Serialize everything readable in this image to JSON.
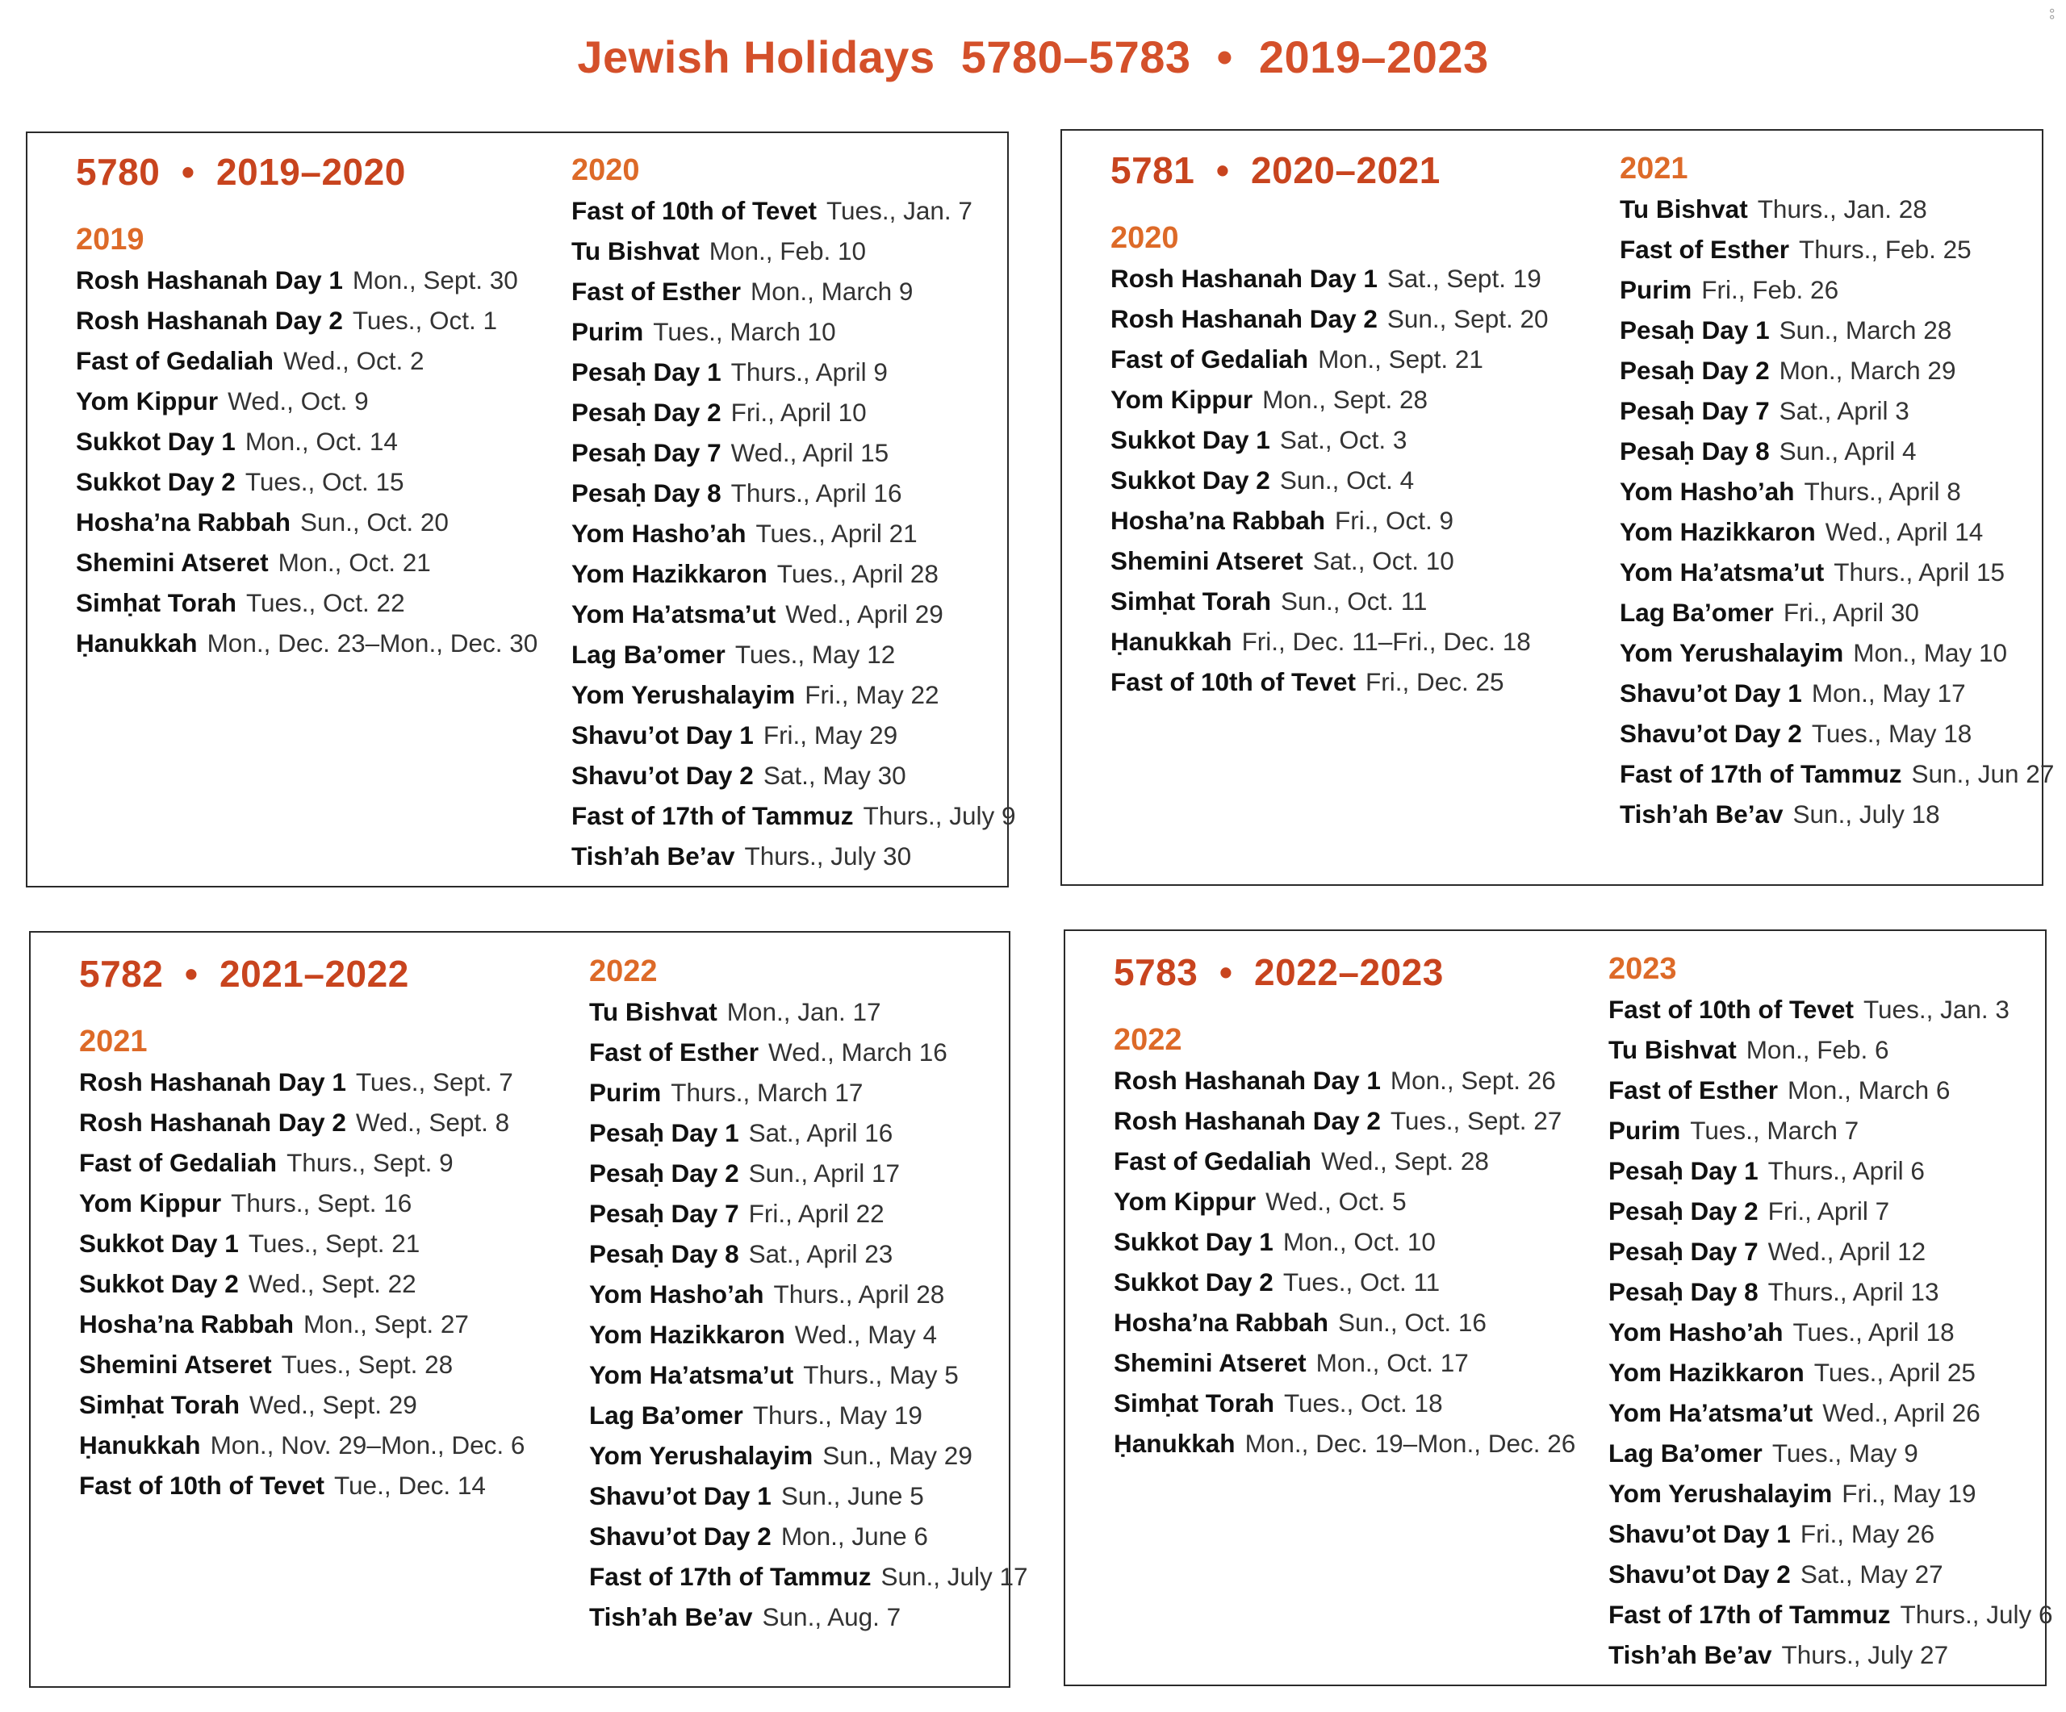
{
  "title": "Jewish Holidays  5780–5783  •  2019–2023",
  "blocks": [
    {
      "title": "5780  •  2019–2020",
      "left": {
        "year": "2019",
        "items": [
          {
            "name": "Rosh Hashanah Day 1",
            "date": "Mon., Sept. 30"
          },
          {
            "name": "Rosh Hashanah Day 2",
            "date": "Tues., Oct. 1"
          },
          {
            "name": "Fast of Gedaliah",
            "date": "Wed., Oct. 2"
          },
          {
            "name": "Yom Kippur",
            "date": "Wed., Oct. 9"
          },
          {
            "name": "Sukkot Day 1",
            "date": "Mon., Oct. 14"
          },
          {
            "name": "Sukkot Day 2",
            "date": "Tues., Oct. 15"
          },
          {
            "name": "Hosha’na Rabbah",
            "date": "Sun., Oct. 20"
          },
          {
            "name": "Shemini Atseret",
            "date": "Mon., Oct. 21"
          },
          {
            "name": "Simḥat Torah",
            "date": "Tues., Oct. 22"
          },
          {
            "name": "Ḥanukkah",
            "date": "Mon., Dec. 23–Mon., Dec. 30"
          }
        ]
      },
      "right": {
        "year": "2020",
        "items": [
          {
            "name": "Fast of 10th of Tevet",
            "date": "Tues., Jan. 7"
          },
          {
            "name": "Tu Bishvat",
            "date": "Mon., Feb. 10"
          },
          {
            "name": "Fast of Esther",
            "date": "Mon., March 9"
          },
          {
            "name": "Purim",
            "date": "Tues., March 10"
          },
          {
            "name": "Pesaḥ Day 1",
            "date": "Thurs., April 9"
          },
          {
            "name": "Pesaḥ Day 2",
            "date": "Fri., April 10"
          },
          {
            "name": "Pesaḥ Day 7",
            "date": "Wed., April 15"
          },
          {
            "name": "Pesaḥ Day 8",
            "date": "Thurs., April 16"
          },
          {
            "name": "Yom Hasho’ah",
            "date": "Tues., April 21"
          },
          {
            "name": "Yom Hazikkaron",
            "date": "Tues., April 28"
          },
          {
            "name": "Yom Ha’atsma’ut",
            "date": "Wed., April 29"
          },
          {
            "name": "Lag Ba’omer",
            "date": "Tues., May 12"
          },
          {
            "name": "Yom Yerushalayim",
            "date": "Fri., May 22"
          },
          {
            "name": "Shavu’ot Day 1",
            "date": "Fri., May 29"
          },
          {
            "name": "Shavu’ot Day 2",
            "date": "Sat., May 30"
          },
          {
            "name": "Fast of 17th of Tammuz",
            "date": "Thurs., July 9"
          },
          {
            "name": "Tish’ah Be’av",
            "date": "Thurs., July 30"
          }
        ]
      }
    },
    {
      "title": "5781  •  2020–2021",
      "left": {
        "year": "2020",
        "items": [
          {
            "name": "Rosh Hashanah Day 1",
            "date": "Sat., Sept. 19"
          },
          {
            "name": "Rosh Hashanah Day 2",
            "date": "Sun., Sept. 20"
          },
          {
            "name": "Fast of Gedaliah",
            "date": "Mon., Sept. 21"
          },
          {
            "name": "Yom Kippur",
            "date": "Mon., Sept. 28"
          },
          {
            "name": "Sukkot Day 1",
            "date": "Sat., Oct. 3"
          },
          {
            "name": "Sukkot Day 2",
            "date": "Sun., Oct. 4"
          },
          {
            "name": "Hosha’na Rabbah",
            "date": "Fri., Oct. 9"
          },
          {
            "name": "Shemini Atseret",
            "date": "Sat., Oct. 10"
          },
          {
            "name": "Simḥat Torah",
            "date": "Sun., Oct. 11"
          },
          {
            "name": "Ḥanukkah",
            "date": "Fri., Dec. 11–Fri., Dec. 18"
          },
          {
            "name": "Fast of 10th of Tevet",
            "date": "Fri., Dec. 25"
          }
        ]
      },
      "right": {
        "year": "2021",
        "items": [
          {
            "name": "Tu Bishvat",
            "date": "Thurs., Jan. 28"
          },
          {
            "name": "Fast of Esther",
            "date": "Thurs., Feb. 25"
          },
          {
            "name": "Purim",
            "date": "Fri., Feb. 26"
          },
          {
            "name": "Pesaḥ Day 1",
            "date": "Sun., March 28"
          },
          {
            "name": "Pesaḥ Day 2",
            "date": "Mon., March 29"
          },
          {
            "name": "Pesaḥ Day 7",
            "date": "Sat., April 3"
          },
          {
            "name": "Pesaḥ Day 8",
            "date": "Sun., April 4"
          },
          {
            "name": "Yom Hasho’ah",
            "date": "Thurs., April 8"
          },
          {
            "name": "Yom Hazikkaron",
            "date": "Wed., April 14"
          },
          {
            "name": "Yom Ha’atsma’ut",
            "date": "Thurs., April 15"
          },
          {
            "name": "Lag Ba’omer",
            "date": "Fri., April 30"
          },
          {
            "name": "Yom Yerushalayim",
            "date": "Mon., May 10"
          },
          {
            "name": "Shavu’ot Day 1",
            "date": "Mon., May 17"
          },
          {
            "name": "Shavu’ot Day 2",
            "date": "Tues., May 18"
          },
          {
            "name": "Fast of 17th of Tammuz",
            "date": "Sun., Jun 27"
          },
          {
            "name": "Tish’ah Be’av",
            "date": "Sun., July 18"
          }
        ]
      }
    },
    {
      "title": "5782  •  2021–2022",
      "left": {
        "year": "2021",
        "items": [
          {
            "name": "Rosh Hashanah Day 1",
            "date": "Tues., Sept. 7"
          },
          {
            "name": "Rosh Hashanah Day 2",
            "date": "Wed., Sept. 8"
          },
          {
            "name": "Fast of Gedaliah",
            "date": "Thurs., Sept. 9"
          },
          {
            "name": "Yom Kippur",
            "date": "Thurs., Sept. 16"
          },
          {
            "name": "Sukkot Day 1",
            "date": "Tues., Sept. 21"
          },
          {
            "name": "Sukkot Day 2",
            "date": "Wed., Sept. 22"
          },
          {
            "name": "Hosha’na Rabbah",
            "date": "Mon., Sept. 27"
          },
          {
            "name": "Shemini Atseret",
            "date": "Tues., Sept. 28"
          },
          {
            "name": "Simḥat Torah",
            "date": "Wed., Sept. 29"
          },
          {
            "name": "Ḥanukkah",
            "date": "Mon., Nov. 29–Mon., Dec. 6"
          },
          {
            "name": "Fast of 10th of Tevet",
            "date": "Tue., Dec. 14"
          }
        ]
      },
      "right": {
        "year": "2022",
        "items": [
          {
            "name": "Tu Bishvat",
            "date": "Mon., Jan. 17"
          },
          {
            "name": "Fast of Esther",
            "date": "Wed., March 16"
          },
          {
            "name": "Purim",
            "date": "Thurs., March 17"
          },
          {
            "name": "Pesaḥ Day 1",
            "date": "Sat., April 16"
          },
          {
            "name": "Pesaḥ Day 2",
            "date": "Sun., April 17"
          },
          {
            "name": "Pesaḥ Day 7",
            "date": "Fri., April 22"
          },
          {
            "name": "Pesaḥ Day 8",
            "date": "Sat., April 23"
          },
          {
            "name": "Yom Hasho’ah",
            "date": "Thurs., April 28"
          },
          {
            "name": "Yom Hazikkaron",
            "date": "Wed., May 4"
          },
          {
            "name": "Yom Ha’atsma’ut",
            "date": "Thurs., May 5"
          },
          {
            "name": "Lag Ba’omer",
            "date": "Thurs., May 19"
          },
          {
            "name": "Yom Yerushalayim",
            "date": "Sun., May 29"
          },
          {
            "name": "Shavu’ot Day 1",
            "date": "Sun., June 5"
          },
          {
            "name": "Shavu’ot Day 2",
            "date": "Mon., June 6"
          },
          {
            "name": "Fast of 17th of Tammuz",
            "date": "Sun., July 17"
          },
          {
            "name": "Tish’ah Be’av",
            "date": "Sun., Aug. 7"
          }
        ]
      }
    },
    {
      "title": "5783  •  2022–2023",
      "left": {
        "year": "2022",
        "items": [
          {
            "name": "Rosh Hashanah Day 1",
            "date": "Mon., Sept. 26"
          },
          {
            "name": "Rosh Hashanah Day 2",
            "date": "Tues., Sept. 27"
          },
          {
            "name": "Fast of Gedaliah",
            "date": "Wed., Sept. 28"
          },
          {
            "name": "Yom Kippur",
            "date": "Wed., Oct. 5"
          },
          {
            "name": "Sukkot Day 1",
            "date": "Mon., Oct. 10"
          },
          {
            "name": "Sukkot Day 2",
            "date": "Tues., Oct. 11"
          },
          {
            "name": "Hosha’na Rabbah",
            "date": "Sun., Oct. 16"
          },
          {
            "name": "Shemini Atseret",
            "date": "Mon., Oct. 17"
          },
          {
            "name": "Simḥat Torah",
            "date": "Tues., Oct. 18"
          },
          {
            "name": "Ḥanukkah",
            "date": "Mon., Dec. 19–Mon., Dec. 26"
          }
        ]
      },
      "right": {
        "year": "2023",
        "items": [
          {
            "name": "Fast of 10th of Tevet",
            "date": "Tues., Jan. 3"
          },
          {
            "name": "Tu Bishvat",
            "date": "Mon., Feb. 6"
          },
          {
            "name": "Fast of Esther",
            "date": "Mon., March 6"
          },
          {
            "name": "Purim",
            "date": "Tues., March 7"
          },
          {
            "name": "Pesaḥ Day 1",
            "date": "Thurs., April 6"
          },
          {
            "name": "Pesaḥ Day 2",
            "date": "Fri., April 7"
          },
          {
            "name": "Pesaḥ Day 7",
            "date": "Wed., April 12"
          },
          {
            "name": "Pesaḥ Day 8",
            "date": "Thurs., April 13"
          },
          {
            "name": "Yom Hasho’ah",
            "date": "Tues., April 18"
          },
          {
            "name": "Yom Hazikkaron",
            "date": "Tues., April 25"
          },
          {
            "name": "Yom Ha’atsma’ut",
            "date": "Wed., April 26"
          },
          {
            "name": "Lag Ba’omer",
            "date": "Tues., May 9"
          },
          {
            "name": "Yom Yerushalayim",
            "date": "Fri., May 19"
          },
          {
            "name": "Shavu’ot Day 1",
            "date": "Fri., May 26"
          },
          {
            "name": "Shavu’ot Day 2",
            "date": "Sat., May 27"
          },
          {
            "name": "Fast of 17th of Tammuz",
            "date": "Thurs., July 6"
          },
          {
            "name": "Tish’ah Be’av",
            "date": "Thurs., July 27"
          }
        ]
      }
    }
  ]
}
